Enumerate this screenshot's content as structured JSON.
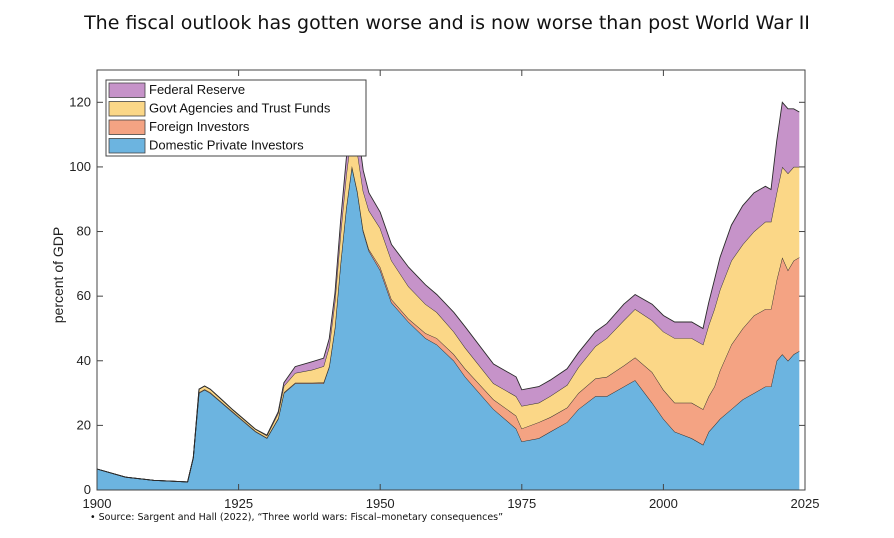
{
  "slide": {
    "title": "The fiscal outlook has gotten worse and is now worse than post World War II",
    "source_note": "Source: Sargent and Hall (2022), “Three world wars: Fiscal–monetary consequences”"
  },
  "chart_data": {
    "type": "area",
    "stacked": true,
    "title": "",
    "xlabel": "",
    "ylabel": "percent of GDP",
    "xlim": [
      1900,
      2025
    ],
    "ylim": [
      0,
      130
    ],
    "x_ticks": [
      1900,
      1925,
      1950,
      1975,
      2000,
      2025
    ],
    "y_ticks": [
      0,
      20,
      40,
      60,
      80,
      100,
      120
    ],
    "legend_position": "top-left",
    "grid": false,
    "x": [
      1900,
      1905,
      1910,
      1916,
      1917,
      1918,
      1919,
      1920,
      1922,
      1924,
      1926,
      1928,
      1930,
      1932,
      1933,
      1935,
      1938,
      1940,
      1941,
      1942,
      1943,
      1944,
      1945,
      1946,
      1947,
      1948,
      1950,
      1952,
      1955,
      1958,
      1960,
      1963,
      1965,
      1970,
      1974,
      1975,
      1978,
      1980,
      1983,
      1985,
      1988,
      1990,
      1993,
      1995,
      1998,
      2000,
      2002,
      2005,
      2007,
      2008,
      2009,
      2010,
      2012,
      2014,
      2016,
      2018,
      2019,
      2020,
      2021,
      2022,
      2023,
      2024
    ],
    "series": [
      {
        "name": "Domestic Private Investors",
        "color": "#6cb4e0",
        "values": [
          6.5,
          4,
          3,
          2.5,
          10,
          30,
          31,
          30,
          27,
          24,
          21,
          18,
          16,
          22,
          30,
          33,
          33,
          33,
          38,
          50,
          70,
          87,
          100,
          92,
          80,
          74,
          68,
          58,
          52,
          47,
          45,
          40,
          35,
          25,
          19,
          15,
          16,
          18,
          21,
          25,
          29,
          29,
          32,
          34,
          27,
          22,
          18,
          16,
          14,
          18,
          20,
          22,
          25,
          28,
          30,
          32,
          32,
          40,
          42,
          40,
          42,
          43
        ]
      },
      {
        "name": "Foreign Investors",
        "color": "#f4a383",
        "values": [
          0,
          0,
          0,
          0,
          0,
          0.2,
          0.2,
          0.2,
          0.2,
          0.2,
          0.2,
          0.2,
          0.2,
          0.2,
          0.2,
          0.2,
          0.2,
          0.3,
          0.3,
          0.3,
          0.3,
          0.3,
          0.3,
          0.3,
          0.5,
          0.5,
          1,
          1,
          1,
          1.5,
          2,
          2,
          2.5,
          3,
          4,
          4,
          5,
          4.5,
          4.5,
          5,
          5.5,
          6,
          6.5,
          7,
          9.5,
          9,
          9,
          11,
          11,
          11,
          12,
          15,
          20,
          22,
          24,
          24,
          24,
          25,
          30,
          28,
          29,
          29
        ]
      },
      {
        "name": "Govt Agencies and Trust Funds",
        "color": "#fbd787",
        "values": [
          0,
          0,
          0,
          0,
          0,
          1,
          1,
          1,
          0.8,
          0.6,
          0.6,
          0.6,
          0.6,
          1.5,
          2,
          3,
          4,
          5,
          6,
          8,
          9,
          10,
          11,
          12,
          12,
          12,
          12,
          12,
          10,
          9,
          8,
          7,
          6.5,
          5,
          6,
          7,
          6,
          6.5,
          7,
          8,
          10,
          12,
          14,
          15,
          16,
          18,
          20,
          20,
          20,
          22,
          24,
          25,
          26,
          26,
          26,
          27,
          27,
          27,
          28,
          30,
          29,
          28
        ]
      },
      {
        "name": "Federal Reserve",
        "color": "#c693c9",
        "values": [
          0,
          0,
          0,
          0,
          0,
          0,
          0,
          0,
          0,
          0,
          0,
          0,
          0.2,
          0.5,
          1,
          2,
          2.5,
          2.5,
          2.5,
          2.5,
          4,
          5,
          8,
          8,
          6.5,
          5.5,
          5,
          5,
          6,
          6,
          5.5,
          6,
          6.5,
          6,
          6,
          5,
          5,
          5,
          5,
          4.5,
          4.5,
          4.5,
          5,
          4.5,
          5,
          5,
          5,
          5,
          5,
          7,
          9,
          10,
          11,
          12,
          12,
          11,
          10,
          16,
          20,
          20,
          18,
          17
        ]
      }
    ]
  }
}
